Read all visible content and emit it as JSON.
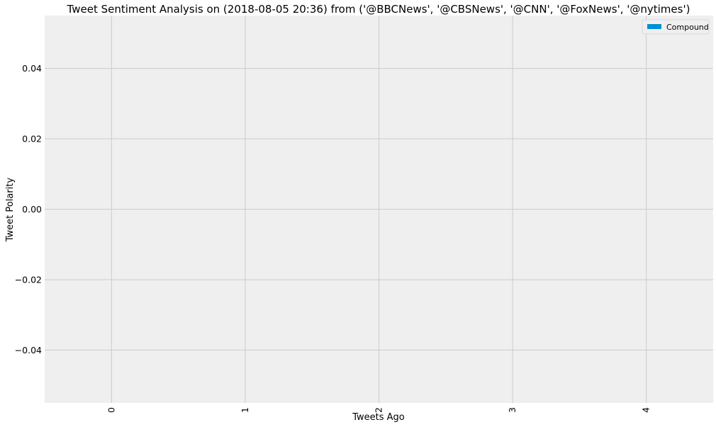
{
  "chart_data": {
    "type": "bar",
    "title": "Tweet Sentiment Analysis on (2018-08-05 20:36) from ('@BBCNews', '@CBSNews', '@CNN', '@FoxNews', '@nytimes')",
    "xlabel": "Tweets Ago",
    "ylabel": "Tweet Polarity",
    "categories": [
      "0",
      "1",
      "2",
      "3",
      "4"
    ],
    "series": [
      {
        "name": "Compound",
        "values": [
          0,
          0,
          0,
          0,
          0
        ],
        "color": "#008fd5"
      }
    ],
    "ylim": [
      -0.055,
      0.055
    ],
    "yticks": [
      -0.04,
      -0.02,
      0.0,
      0.02,
      0.04
    ],
    "ytick_labels": [
      "−0.04",
      "−0.02",
      "0.00",
      "0.02",
      "0.04"
    ],
    "grid": true,
    "legend_position": "top-right",
    "background": "#efefef"
  }
}
